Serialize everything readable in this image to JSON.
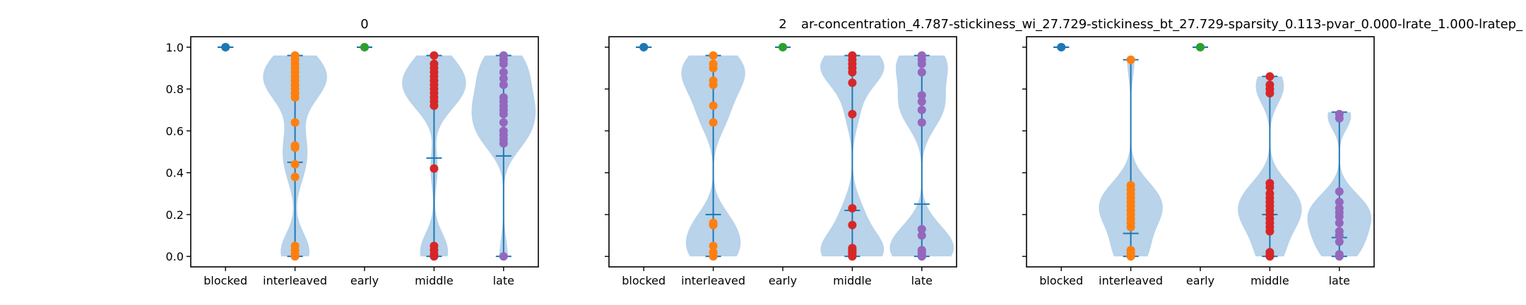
{
  "figure": {
    "titles": [
      "0",
      "2",
      "ar-concentration_4.787-stickiness_wi_27.729-stickiness_bt_27.729-sparsity_0.113-pvar_0.000-lrate_1.000-lratep_"
    ]
  },
  "colors": {
    "blocked": "#1f77b4",
    "interleaved": "#ff7f0e",
    "early": "#2ca02c",
    "middle": "#d62728",
    "late": "#9467bd",
    "violin_fill": "#a6c8e5",
    "violin_line": "#1f77b4"
  },
  "chart_data": [
    {
      "type": "violin",
      "title": "0",
      "categories": [
        "blocked",
        "interleaved",
        "early",
        "middle",
        "late"
      ],
      "ylim": [
        -0.05,
        1.05
      ],
      "yticks": [
        "0.0",
        "0.2",
        "0.4",
        "0.6",
        "0.8",
        "1.0"
      ],
      "show_ytick_labels": true,
      "series": [
        {
          "category": "blocked",
          "min": 1.0,
          "max": 1.0,
          "mean": 1.0,
          "points": [
            1.0,
            1.0,
            1.0
          ]
        },
        {
          "category": "interleaved",
          "min": 0.0,
          "max": 0.96,
          "mean": 0.45,
          "points": [
            0.0,
            0.01,
            0.03,
            0.05,
            0.38,
            0.44,
            0.52,
            0.53,
            0.64,
            0.76,
            0.78,
            0.8,
            0.82,
            0.84,
            0.86,
            0.88,
            0.9,
            0.92,
            0.94,
            0.96
          ]
        },
        {
          "category": "early",
          "min": 1.0,
          "max": 1.0,
          "mean": 1.0,
          "points": [
            1.0,
            1.0
          ]
        },
        {
          "category": "middle",
          "min": 0.0,
          "max": 0.96,
          "mean": 0.47,
          "points": [
            0.0,
            0.01,
            0.03,
            0.05,
            0.42,
            0.72,
            0.74,
            0.76,
            0.78,
            0.8,
            0.82,
            0.84,
            0.86,
            0.88,
            0.9,
            0.92,
            0.96
          ]
        },
        {
          "category": "late",
          "min": 0.0,
          "max": 0.96,
          "mean": 0.48,
          "points": [
            0.0,
            0.54,
            0.56,
            0.58,
            0.6,
            0.64,
            0.68,
            0.7,
            0.72,
            0.74,
            0.76,
            0.82,
            0.85,
            0.88,
            0.92,
            0.94,
            0.96
          ]
        }
      ]
    },
    {
      "type": "violin",
      "title": "2",
      "categories": [
        "blocked",
        "interleaved",
        "early",
        "middle",
        "late"
      ],
      "ylim": [
        -0.05,
        1.05
      ],
      "yticks": [
        "0.0",
        "0.2",
        "0.4",
        "0.6",
        "0.8",
        "1.0"
      ],
      "show_ytick_labels": false,
      "series": [
        {
          "category": "blocked",
          "min": 1.0,
          "max": 1.0,
          "mean": 1.0,
          "points": [
            1.0,
            1.0
          ]
        },
        {
          "category": "interleaved",
          "min": 0.0,
          "max": 0.96,
          "mean": 0.2,
          "points": [
            0.0,
            0.02,
            0.05,
            0.15,
            0.16,
            0.64,
            0.72,
            0.82,
            0.84,
            0.9,
            0.92,
            0.96
          ]
        },
        {
          "category": "early",
          "min": 1.0,
          "max": 1.0,
          "mean": 1.0,
          "points": [
            1.0,
            1.0
          ]
        },
        {
          "category": "middle",
          "min": 0.0,
          "max": 0.96,
          "mean": 0.22,
          "points": [
            0.0,
            0.01,
            0.02,
            0.03,
            0.04,
            0.15,
            0.23,
            0.68,
            0.83,
            0.88,
            0.9,
            0.92,
            0.94,
            0.96
          ]
        },
        {
          "category": "late",
          "min": 0.0,
          "max": 0.96,
          "mean": 0.25,
          "points": [
            0.0,
            0.01,
            0.02,
            0.03,
            0.1,
            0.13,
            0.64,
            0.7,
            0.74,
            0.77,
            0.88,
            0.92,
            0.94,
            0.96
          ]
        }
      ]
    },
    {
      "type": "violin",
      "title": "ar-concentration_4.787-stickiness_wi_27.729-stickiness_bt_27.729-sparsity_0.113-pvar_0.000-lrate_1.000-lratep_",
      "categories": [
        "blocked",
        "interleaved",
        "early",
        "middle",
        "late"
      ],
      "ylim": [
        -0.05,
        1.05
      ],
      "yticks": [
        "0.0",
        "0.2",
        "0.4",
        "0.6",
        "0.8",
        "1.0"
      ],
      "show_ytick_labels": false,
      "series": [
        {
          "category": "blocked",
          "min": 1.0,
          "max": 1.0,
          "mean": 1.0,
          "points": [
            1.0,
            1.0
          ]
        },
        {
          "category": "interleaved",
          "min": 0.0,
          "max": 0.94,
          "mean": 0.11,
          "points": [
            0.0,
            0.01,
            0.02,
            0.03,
            0.14,
            0.16,
            0.18,
            0.2,
            0.22,
            0.24,
            0.26,
            0.28,
            0.3,
            0.32,
            0.34,
            0.94
          ]
        },
        {
          "category": "early",
          "min": 1.0,
          "max": 1.0,
          "mean": 1.0,
          "points": [
            1.0,
            1.0
          ]
        },
        {
          "category": "middle",
          "min": 0.0,
          "max": 0.86,
          "mean": 0.2,
          "points": [
            0.0,
            0.01,
            0.02,
            0.12,
            0.14,
            0.16,
            0.18,
            0.2,
            0.22,
            0.24,
            0.26,
            0.28,
            0.3,
            0.33,
            0.35,
            0.78,
            0.8,
            0.82,
            0.86
          ]
        },
        {
          "category": "late",
          "min": 0.0,
          "max": 0.69,
          "mean": 0.09,
          "points": [
            0.0,
            0.01,
            0.07,
            0.1,
            0.12,
            0.16,
            0.19,
            0.21,
            0.23,
            0.26,
            0.31,
            0.66,
            0.68
          ]
        }
      ]
    }
  ]
}
